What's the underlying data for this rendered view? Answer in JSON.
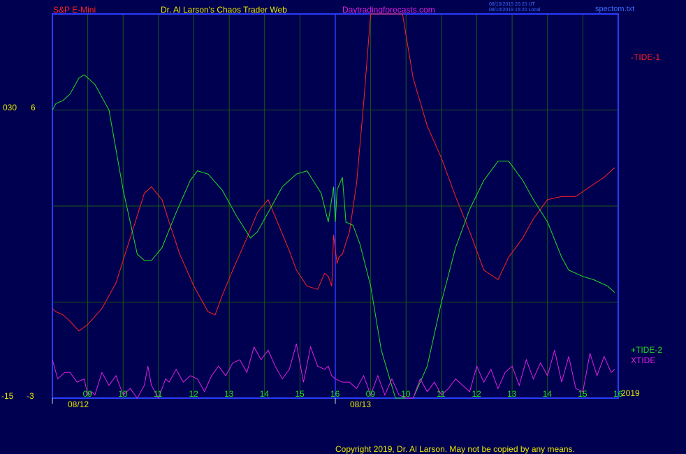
{
  "header": {
    "instrument": "S&P E-Mini",
    "author": "Dr. Al Larson's Chaos Trader Web",
    "site": "Daytradingforecasts.com",
    "stamp_ut": "08/10/2019 20:20 UT",
    "stamp_local": "08/10/2019 15:20 Local",
    "file": "spectom.txt"
  },
  "footer": {
    "copyright": "Copyright 2019, Dr. Al Larson. May not be copied by any means."
  },
  "colors": {
    "background": "#000050",
    "frame": "#2a3cff",
    "grid": "#1a5a14",
    "tide1": "#ff2020",
    "tide2": "#22dd22",
    "xtide": "#e020e0",
    "label": "#e8e800"
  },
  "chart_data": {
    "type": "line",
    "y_ticks_left": [
      "030",
      "-15"
    ],
    "y_ticks_right": [
      "6",
      "-3"
    ],
    "x_hour_labels": [
      "09",
      "10",
      "11",
      "12",
      "13",
      "14",
      "15",
      "16",
      "09",
      "10",
      "11",
      "12",
      "13",
      "14",
      "15",
      "16"
    ],
    "x_date_labels": [
      "08/12",
      "08/13"
    ],
    "year_label": "2019",
    "x_range": [
      0,
      16
    ],
    "y_range": [
      -3,
      9
    ],
    "grid": true,
    "series": [
      {
        "name": "-TIDE-1",
        "label": "-TIDE-1",
        "color": "#ff2020",
        "x": [
          0,
          0.1,
          0.3,
          0.5,
          0.75,
          1.0,
          1.4,
          1.8,
          2.2,
          2.6,
          2.8,
          3.1,
          3.3,
          3.6,
          4.0,
          4.4,
          4.6,
          4.8,
          5.1,
          5.5,
          5.8,
          6.1,
          6.4,
          6.7,
          6.9,
          7.2,
          7.5,
          7.7,
          7.8,
          7.9,
          7.95,
          8.05,
          8.1,
          8.2,
          8.4,
          8.6,
          8.8,
          9.0,
          9.3,
          9.6,
          9.9,
          10.2,
          10.6,
          11.0,
          11.4,
          11.8,
          12.2,
          12.6,
          12.9,
          13.3,
          13.6,
          14.0,
          14.4,
          14.8,
          15.2,
          15.6,
          15.9
        ],
        "y": [
          -0.2,
          -0.3,
          -0.4,
          -0.6,
          -0.9,
          -0.7,
          -0.2,
          0.6,
          2.0,
          3.4,
          3.6,
          3.2,
          2.5,
          1.5,
          0.5,
          -0.3,
          -0.4,
          0.2,
          1.0,
          2.0,
          2.8,
          3.2,
          2.4,
          1.6,
          1.0,
          0.5,
          0.4,
          0.9,
          0.8,
          0.5,
          2.1,
          1.2,
          1.4,
          1.5,
          2.2,
          3.7,
          6.2,
          9.0,
          9.0,
          9.0,
          9.0,
          7.0,
          5.5,
          4.5,
          3.3,
          2.2,
          1.0,
          0.7,
          1.4,
          2.0,
          2.6,
          3.2,
          3.3,
          3.3,
          3.6,
          3.9,
          4.2
        ]
      },
      {
        "name": "+TIDE-2",
        "label": "+TIDE-2",
        "color": "#22dd22",
        "x": [
          0,
          0.1,
          0.3,
          0.5,
          0.75,
          0.9,
          1.2,
          1.6,
          2.0,
          2.4,
          2.6,
          2.8,
          3.1,
          3.5,
          3.9,
          4.1,
          4.4,
          4.8,
          5.2,
          5.6,
          5.8,
          6.1,
          6.5,
          6.9,
          7.2,
          7.6,
          7.8,
          7.95,
          8.0,
          8.05,
          8.2,
          8.3,
          8.5,
          8.7,
          9.0,
          9.3,
          9.7,
          10.0,
          10.2,
          10.6,
          11.0,
          11.4,
          11.8,
          12.2,
          12.6,
          12.9,
          13.3,
          13.6,
          14.0,
          14.4,
          14.6,
          15.0,
          15.3,
          15.7,
          15.9
        ],
        "y": [
          6.0,
          6.2,
          6.3,
          6.5,
          7.0,
          7.1,
          6.8,
          6.0,
          3.5,
          1.5,
          1.3,
          1.3,
          1.7,
          2.8,
          3.8,
          4.1,
          4.0,
          3.5,
          2.7,
          2.0,
          2.2,
          2.8,
          3.6,
          4.0,
          4.1,
          3.4,
          2.5,
          3.6,
          2.5,
          3.5,
          3.9,
          2.5,
          2.4,
          1.8,
          0.5,
          -1.5,
          -3.0,
          -3.0,
          -3.0,
          -2.0,
          0.0,
          1.7,
          2.9,
          3.8,
          4.4,
          4.4,
          3.8,
          3.2,
          2.5,
          1.4,
          1.0,
          0.8,
          0.7,
          0.5,
          0.3
        ]
      },
      {
        "name": "XTIDE",
        "label": "XTIDE",
        "color": "#e020e0",
        "x": [
          0,
          0.15,
          0.35,
          0.5,
          0.7,
          0.9,
          1.0,
          1.1,
          1.2,
          1.4,
          1.6,
          1.8,
          2.0,
          2.2,
          2.4,
          2.6,
          2.7,
          2.8,
          3.0,
          3.2,
          3.3,
          3.5,
          3.7,
          3.9,
          4.1,
          4.3,
          4.5,
          4.7,
          4.9,
          5.1,
          5.3,
          5.5,
          5.7,
          5.9,
          6.1,
          6.3,
          6.5,
          6.7,
          6.9,
          7.1,
          7.3,
          7.5,
          7.7,
          7.8,
          7.9,
          8.0,
          8.2,
          8.4,
          8.6,
          8.8,
          9.0,
          9.2,
          9.4,
          9.6,
          9.8,
          10.0,
          10.2,
          10.4,
          10.6,
          10.8,
          11.0,
          11.2,
          11.4,
          11.6,
          11.8,
          12.0,
          12.2,
          12.4,
          12.6,
          12.8,
          13.0,
          13.2,
          13.4,
          13.6,
          13.8,
          14.0,
          14.2,
          14.4,
          14.6,
          14.8,
          15.0,
          15.2,
          15.4,
          15.6,
          15.8,
          15.9
        ],
        "y": [
          -1.8,
          -2.4,
          -2.2,
          -2.2,
          -2.5,
          -2.4,
          -2.9,
          -2.8,
          -2.9,
          -2.2,
          -2.6,
          -2.3,
          -2.9,
          -2.7,
          -3.0,
          -2.6,
          -2.0,
          -2.6,
          -3.0,
          -2.4,
          -2.5,
          -2.1,
          -2.5,
          -2.3,
          -2.4,
          -2.8,
          -2.3,
          -2.0,
          -2.3,
          -1.9,
          -1.8,
          -2.2,
          -1.4,
          -1.8,
          -1.5,
          -2.0,
          -2.4,
          -2.1,
          -1.3,
          -2.5,
          -1.4,
          -2.0,
          -2.1,
          -2.0,
          -2.3,
          -2.4,
          -2.5,
          -2.5,
          -2.7,
          -2.3,
          -2.9,
          -2.3,
          -2.9,
          -2.4,
          -2.9,
          -3.0,
          -3.0,
          -2.4,
          -2.8,
          -2.5,
          -2.9,
          -2.7,
          -2.4,
          -2.6,
          -2.8,
          -2.0,
          -2.5,
          -2.1,
          -2.7,
          -2.2,
          -2.0,
          -2.6,
          -1.8,
          -2.4,
          -1.9,
          -2.3,
          -1.5,
          -2.5,
          -1.7,
          -2.7,
          -2.8,
          -1.6,
          -2.3,
          -1.7,
          -2.2,
          -2.1
        ]
      }
    ]
  }
}
